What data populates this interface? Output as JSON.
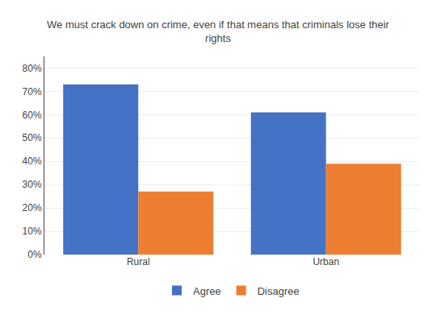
{
  "chart_data": {
    "type": "bar",
    "title": "We must crack down on crime, even if that means that criminals lose their\nrights",
    "categories": [
      "Rural",
      "Urban"
    ],
    "series": [
      {
        "name": "Agree",
        "color": "#4472C4",
        "values": [
          0.73,
          0.61
        ]
      },
      {
        "name": "Disagree",
        "color": "#ED7D31",
        "values": [
          0.27,
          0.39
        ]
      }
    ],
    "ylim": [
      0,
      0.85
    ],
    "yticks": [
      {
        "value": 0,
        "label": "0%"
      },
      {
        "value": 0.1,
        "label": "10%"
      },
      {
        "value": 0.2,
        "label": "20%"
      },
      {
        "value": 0.3,
        "label": "30%"
      },
      {
        "value": 0.4,
        "label": "40%"
      },
      {
        "value": 0.5,
        "label": "50%"
      },
      {
        "value": 0.6,
        "label": "60%"
      },
      {
        "value": 0.7,
        "label": "70%"
      },
      {
        "value": 0.8,
        "label": "80%"
      }
    ],
    "grid": true,
    "legend": "bottom"
  }
}
